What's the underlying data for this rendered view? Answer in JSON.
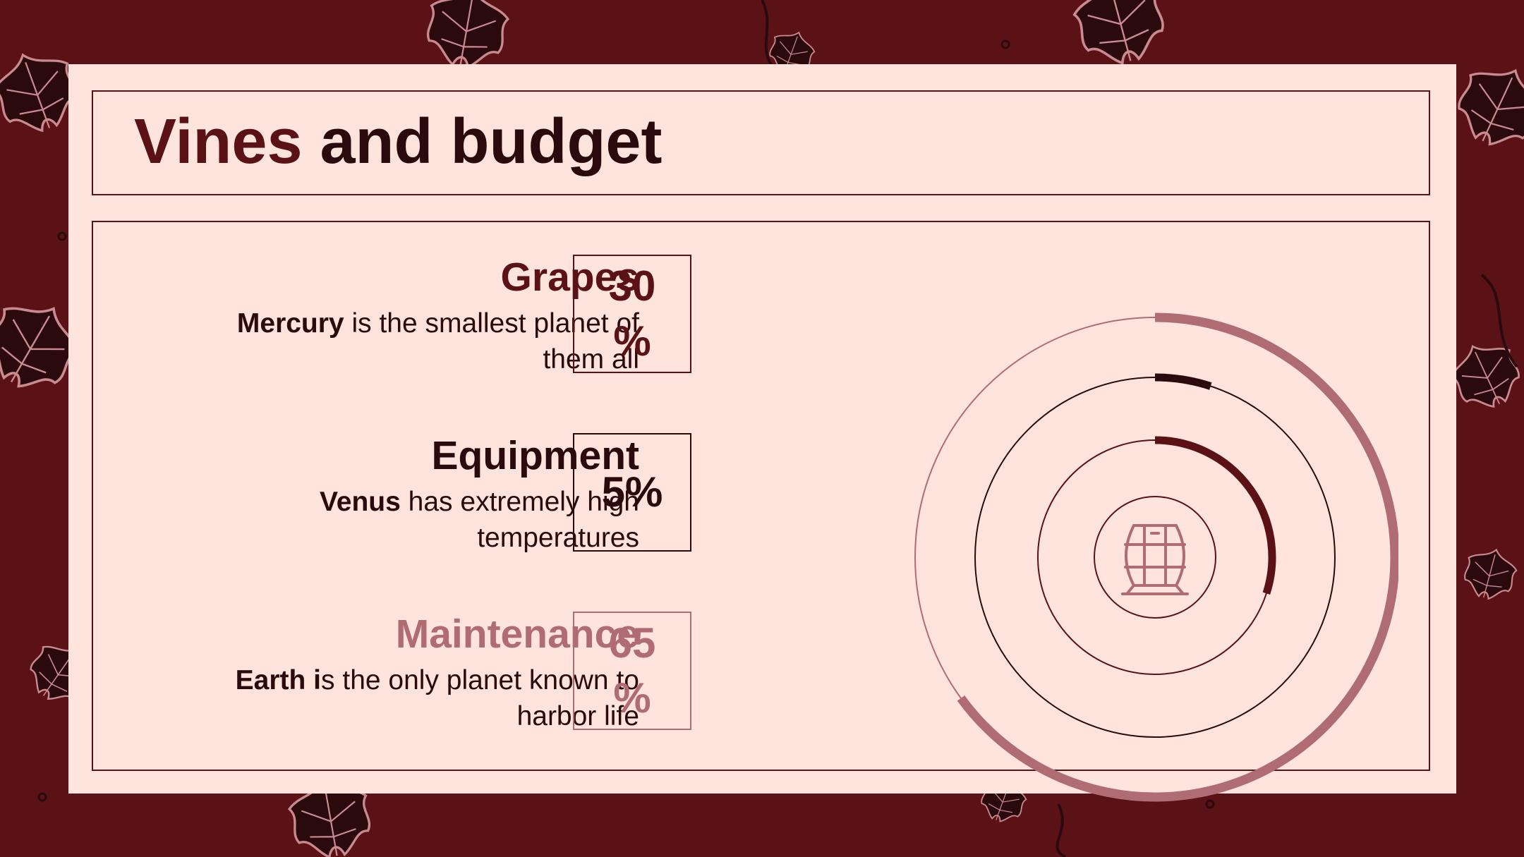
{
  "slide": {
    "title_part1": "Vines",
    "title_part2": " and budget"
  },
  "items": [
    {
      "title": "Grapes",
      "desc_bold": "Mercury",
      "desc_rest": " is the smallest planet of them all",
      "value": "30%"
    },
    {
      "title": "Equipment",
      "desc_bold": "Venus",
      "desc_rest": " has extremely high temperatures",
      "value": "5%"
    },
    {
      "title": "Maintenance",
      "desc_bold": "Earth i",
      "desc_rest": "s the only planet known to harbor life",
      "value": "65%"
    }
  ],
  "colors": {
    "background": "#5b1217",
    "card": "#ffe3dd",
    "grapes": "#5b1217",
    "equipment": "#2b0a0d",
    "maintenance": "#b06c74"
  },
  "chart_data": {
    "type": "radial-bar",
    "categories": [
      "Grapes",
      "Equipment",
      "Maintenance"
    ],
    "values": [
      30,
      5,
      65
    ],
    "unit": "%",
    "center_icon": "wine-barrel-icon"
  }
}
